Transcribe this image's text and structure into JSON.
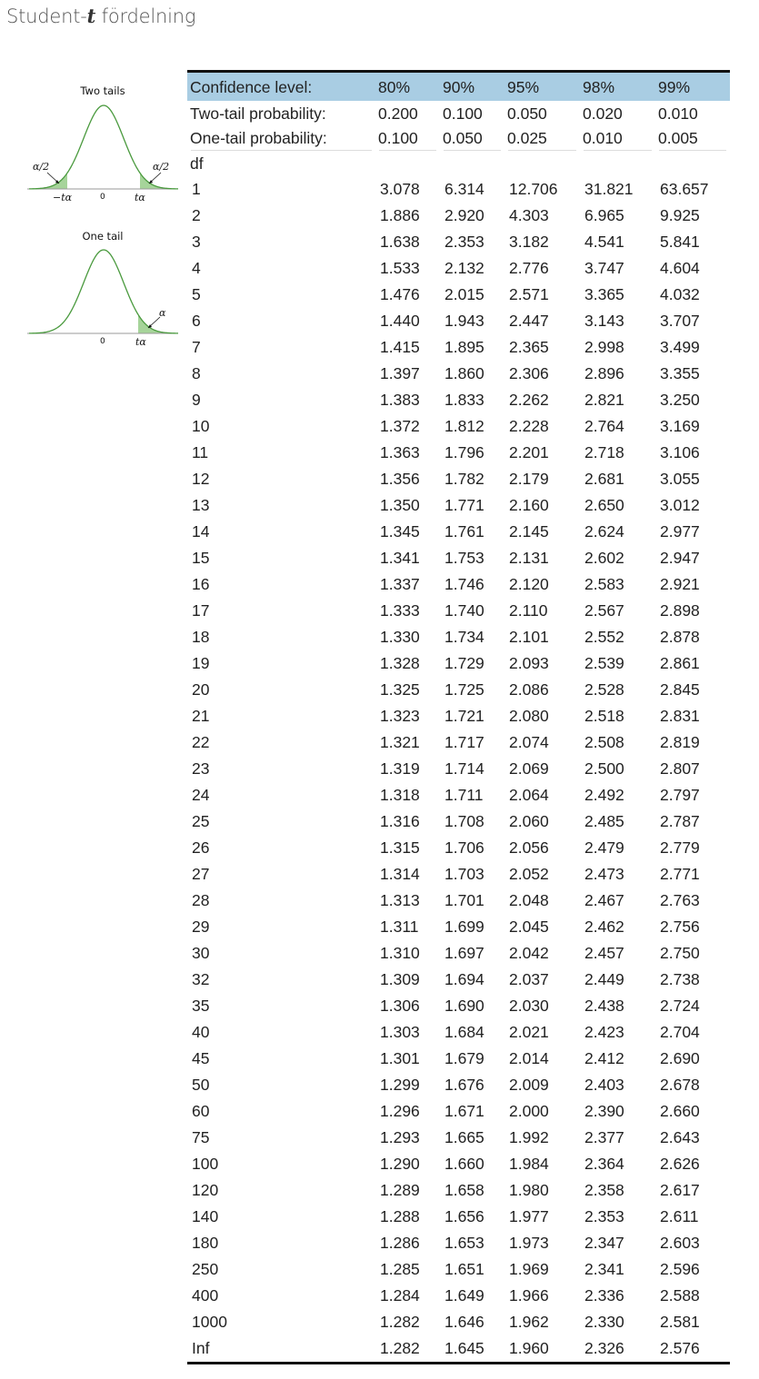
{
  "title": {
    "prefix": "Student-",
    "variable": "t",
    "suffix": " fördelning"
  },
  "figures": {
    "two_tails": {
      "caption": "Two tails",
      "left_area": "α/2",
      "right_area": "α/2",
      "left_tick": "−tα",
      "center_tick": "0",
      "right_tick": "tα"
    },
    "one_tail": {
      "caption": "One tail",
      "right_area": "α",
      "center_tick": "0",
      "right_tick": "tα"
    },
    "colors": {
      "curve": "#4a9a3e",
      "shade": "#a6d49a",
      "axis": "#999999"
    }
  },
  "table": {
    "confidence_label": "Confidence level:",
    "confidence_levels": [
      "80%",
      "90%",
      "95%",
      "98%",
      "99%"
    ],
    "two_tail_label": "Two-tail probability:",
    "two_tail": [
      "0.200",
      "0.100",
      "0.050",
      "0.020",
      "0.010"
    ],
    "one_tail_label": "One-tail probability:",
    "one_tail": [
      "0.100",
      "0.050",
      "0.025",
      "0.010",
      "0.005"
    ],
    "df_label": "df",
    "header_color": "#a9cde3",
    "rows": [
      [
        "1",
        "3.078",
        "6.314",
        "12.706",
        "31.821",
        "63.657"
      ],
      [
        "2",
        "1.886",
        "2.920",
        "4.303",
        "6.965",
        "9.925"
      ],
      [
        "3",
        "1.638",
        "2.353",
        "3.182",
        "4.541",
        "5.841"
      ],
      [
        "4",
        "1.533",
        "2.132",
        "2.776",
        "3.747",
        "4.604"
      ],
      [
        "5",
        "1.476",
        "2.015",
        "2.571",
        "3.365",
        "4.032"
      ],
      [
        "6",
        "1.440",
        "1.943",
        "2.447",
        "3.143",
        "3.707"
      ],
      [
        "7",
        "1.415",
        "1.895",
        "2.365",
        "2.998",
        "3.499"
      ],
      [
        "8",
        "1.397",
        "1.860",
        "2.306",
        "2.896",
        "3.355"
      ],
      [
        "9",
        "1.383",
        "1.833",
        "2.262",
        "2.821",
        "3.250"
      ],
      [
        "10",
        "1.372",
        "1.812",
        "2.228",
        "2.764",
        "3.169"
      ],
      [
        "11",
        "1.363",
        "1.796",
        "2.201",
        "2.718",
        "3.106"
      ],
      [
        "12",
        "1.356",
        "1.782",
        "2.179",
        "2.681",
        "3.055"
      ],
      [
        "13",
        "1.350",
        "1.771",
        "2.160",
        "2.650",
        "3.012"
      ],
      [
        "14",
        "1.345",
        "1.761",
        "2.145",
        "2.624",
        "2.977"
      ],
      [
        "15",
        "1.341",
        "1.753",
        "2.131",
        "2.602",
        "2.947"
      ],
      [
        "16",
        "1.337",
        "1.746",
        "2.120",
        "2.583",
        "2.921"
      ],
      [
        "17",
        "1.333",
        "1.740",
        "2.110",
        "2.567",
        "2.898"
      ],
      [
        "18",
        "1.330",
        "1.734",
        "2.101",
        "2.552",
        "2.878"
      ],
      [
        "19",
        "1.328",
        "1.729",
        "2.093",
        "2.539",
        "2.861"
      ],
      [
        "20",
        "1.325",
        "1.725",
        "2.086",
        "2.528",
        "2.845"
      ],
      [
        "21",
        "1.323",
        "1.721",
        "2.080",
        "2.518",
        "2.831"
      ],
      [
        "22",
        "1.321",
        "1.717",
        "2.074",
        "2.508",
        "2.819"
      ],
      [
        "23",
        "1.319",
        "1.714",
        "2.069",
        "2.500",
        "2.807"
      ],
      [
        "24",
        "1.318",
        "1.711",
        "2.064",
        "2.492",
        "2.797"
      ],
      [
        "25",
        "1.316",
        "1.708",
        "2.060",
        "2.485",
        "2.787"
      ],
      [
        "26",
        "1.315",
        "1.706",
        "2.056",
        "2.479",
        "2.779"
      ],
      [
        "27",
        "1.314",
        "1.703",
        "2.052",
        "2.473",
        "2.771"
      ],
      [
        "28",
        "1.313",
        "1.701",
        "2.048",
        "2.467",
        "2.763"
      ],
      [
        "29",
        "1.311",
        "1.699",
        "2.045",
        "2.462",
        "2.756"
      ],
      [
        "30",
        "1.310",
        "1.697",
        "2.042",
        "2.457",
        "2.750"
      ],
      [
        "32",
        "1.309",
        "1.694",
        "2.037",
        "2.449",
        "2.738"
      ],
      [
        "35",
        "1.306",
        "1.690",
        "2.030",
        "2.438",
        "2.724"
      ],
      [
        "40",
        "1.303",
        "1.684",
        "2.021",
        "2.423",
        "2.704"
      ],
      [
        "45",
        "1.301",
        "1.679",
        "2.014",
        "2.412",
        "2.690"
      ],
      [
        "50",
        "1.299",
        "1.676",
        "2.009",
        "2.403",
        "2.678"
      ],
      [
        "60",
        "1.296",
        "1.671",
        "2.000",
        "2.390",
        "2.660"
      ],
      [
        "75",
        "1.293",
        "1.665",
        "1.992",
        "2.377",
        "2.643"
      ],
      [
        "100",
        "1.290",
        "1.660",
        "1.984",
        "2.364",
        "2.626"
      ],
      [
        "120",
        "1.289",
        "1.658",
        "1.980",
        "2.358",
        "2.617"
      ],
      [
        "140",
        "1.288",
        "1.656",
        "1.977",
        "2.353",
        "2.611"
      ],
      [
        "180",
        "1.286",
        "1.653",
        "1.973",
        "2.347",
        "2.603"
      ],
      [
        "250",
        "1.285",
        "1.651",
        "1.969",
        "2.341",
        "2.596"
      ],
      [
        "400",
        "1.284",
        "1.649",
        "1.966",
        "2.336",
        "2.588"
      ],
      [
        "1000",
        "1.282",
        "1.646",
        "1.962",
        "2.330",
        "2.581"
      ],
      [
        "Inf",
        "1.282",
        "1.645",
        "1.960",
        "2.326",
        "2.576"
      ]
    ]
  }
}
